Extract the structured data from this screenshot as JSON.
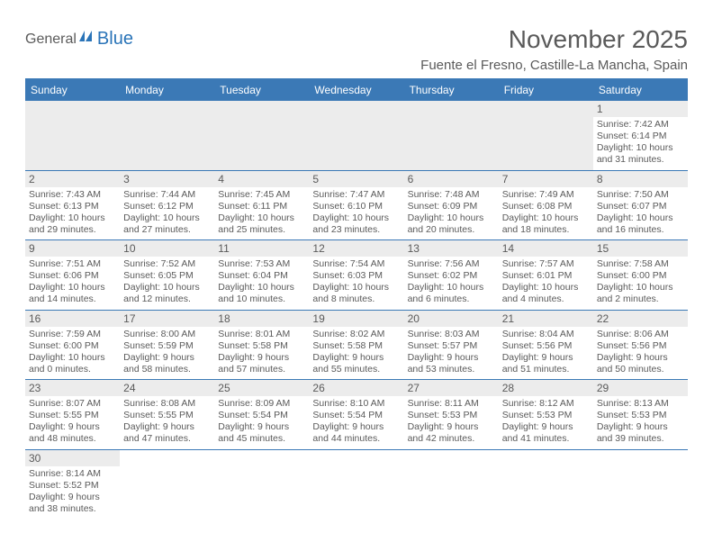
{
  "logo": {
    "part1": "General",
    "part2": "Blue"
  },
  "title": "November 2025",
  "location": "Fuente el Fresno, Castille-La Mancha, Spain",
  "colors": {
    "header_bg": "#3b79b6",
    "header_text": "#ffffff",
    "daynum_bg": "#ececec",
    "text": "#5a5a5a",
    "logo_blue": "#2a74b8"
  },
  "dayHeaders": [
    "Sunday",
    "Monday",
    "Tuesday",
    "Wednesday",
    "Thursday",
    "Friday",
    "Saturday"
  ],
  "weeks": [
    [
      null,
      null,
      null,
      null,
      null,
      null,
      {
        "n": "1",
        "sr": "7:42 AM",
        "ss": "6:14 PM",
        "dl": "10 hours and 31 minutes."
      }
    ],
    [
      {
        "n": "2",
        "sr": "7:43 AM",
        "ss": "6:13 PM",
        "dl": "10 hours and 29 minutes."
      },
      {
        "n": "3",
        "sr": "7:44 AM",
        "ss": "6:12 PM",
        "dl": "10 hours and 27 minutes."
      },
      {
        "n": "4",
        "sr": "7:45 AM",
        "ss": "6:11 PM",
        "dl": "10 hours and 25 minutes."
      },
      {
        "n": "5",
        "sr": "7:47 AM",
        "ss": "6:10 PM",
        "dl": "10 hours and 23 minutes."
      },
      {
        "n": "6",
        "sr": "7:48 AM",
        "ss": "6:09 PM",
        "dl": "10 hours and 20 minutes."
      },
      {
        "n": "7",
        "sr": "7:49 AM",
        "ss": "6:08 PM",
        "dl": "10 hours and 18 minutes."
      },
      {
        "n": "8",
        "sr": "7:50 AM",
        "ss": "6:07 PM",
        "dl": "10 hours and 16 minutes."
      }
    ],
    [
      {
        "n": "9",
        "sr": "7:51 AM",
        "ss": "6:06 PM",
        "dl": "10 hours and 14 minutes."
      },
      {
        "n": "10",
        "sr": "7:52 AM",
        "ss": "6:05 PM",
        "dl": "10 hours and 12 minutes."
      },
      {
        "n": "11",
        "sr": "7:53 AM",
        "ss": "6:04 PM",
        "dl": "10 hours and 10 minutes."
      },
      {
        "n": "12",
        "sr": "7:54 AM",
        "ss": "6:03 PM",
        "dl": "10 hours and 8 minutes."
      },
      {
        "n": "13",
        "sr": "7:56 AM",
        "ss": "6:02 PM",
        "dl": "10 hours and 6 minutes."
      },
      {
        "n": "14",
        "sr": "7:57 AM",
        "ss": "6:01 PM",
        "dl": "10 hours and 4 minutes."
      },
      {
        "n": "15",
        "sr": "7:58 AM",
        "ss": "6:00 PM",
        "dl": "10 hours and 2 minutes."
      }
    ],
    [
      {
        "n": "16",
        "sr": "7:59 AM",
        "ss": "6:00 PM",
        "dl": "10 hours and 0 minutes."
      },
      {
        "n": "17",
        "sr": "8:00 AM",
        "ss": "5:59 PM",
        "dl": "9 hours and 58 minutes."
      },
      {
        "n": "18",
        "sr": "8:01 AM",
        "ss": "5:58 PM",
        "dl": "9 hours and 57 minutes."
      },
      {
        "n": "19",
        "sr": "8:02 AM",
        "ss": "5:58 PM",
        "dl": "9 hours and 55 minutes."
      },
      {
        "n": "20",
        "sr": "8:03 AM",
        "ss": "5:57 PM",
        "dl": "9 hours and 53 minutes."
      },
      {
        "n": "21",
        "sr": "8:04 AM",
        "ss": "5:56 PM",
        "dl": "9 hours and 51 minutes."
      },
      {
        "n": "22",
        "sr": "8:06 AM",
        "ss": "5:56 PM",
        "dl": "9 hours and 50 minutes."
      }
    ],
    [
      {
        "n": "23",
        "sr": "8:07 AM",
        "ss": "5:55 PM",
        "dl": "9 hours and 48 minutes."
      },
      {
        "n": "24",
        "sr": "8:08 AM",
        "ss": "5:55 PM",
        "dl": "9 hours and 47 minutes."
      },
      {
        "n": "25",
        "sr": "8:09 AM",
        "ss": "5:54 PM",
        "dl": "9 hours and 45 minutes."
      },
      {
        "n": "26",
        "sr": "8:10 AM",
        "ss": "5:54 PM",
        "dl": "9 hours and 44 minutes."
      },
      {
        "n": "27",
        "sr": "8:11 AM",
        "ss": "5:53 PM",
        "dl": "9 hours and 42 minutes."
      },
      {
        "n": "28",
        "sr": "8:12 AM",
        "ss": "5:53 PM",
        "dl": "9 hours and 41 minutes."
      },
      {
        "n": "29",
        "sr": "8:13 AM",
        "ss": "5:53 PM",
        "dl": "9 hours and 39 minutes."
      }
    ],
    [
      {
        "n": "30",
        "sr": "8:14 AM",
        "ss": "5:52 PM",
        "dl": "9 hours and 38 minutes."
      },
      null,
      null,
      null,
      null,
      null,
      null
    ]
  ],
  "labels": {
    "sunrise": "Sunrise:",
    "sunset": "Sunset:",
    "daylight": "Daylight:"
  }
}
